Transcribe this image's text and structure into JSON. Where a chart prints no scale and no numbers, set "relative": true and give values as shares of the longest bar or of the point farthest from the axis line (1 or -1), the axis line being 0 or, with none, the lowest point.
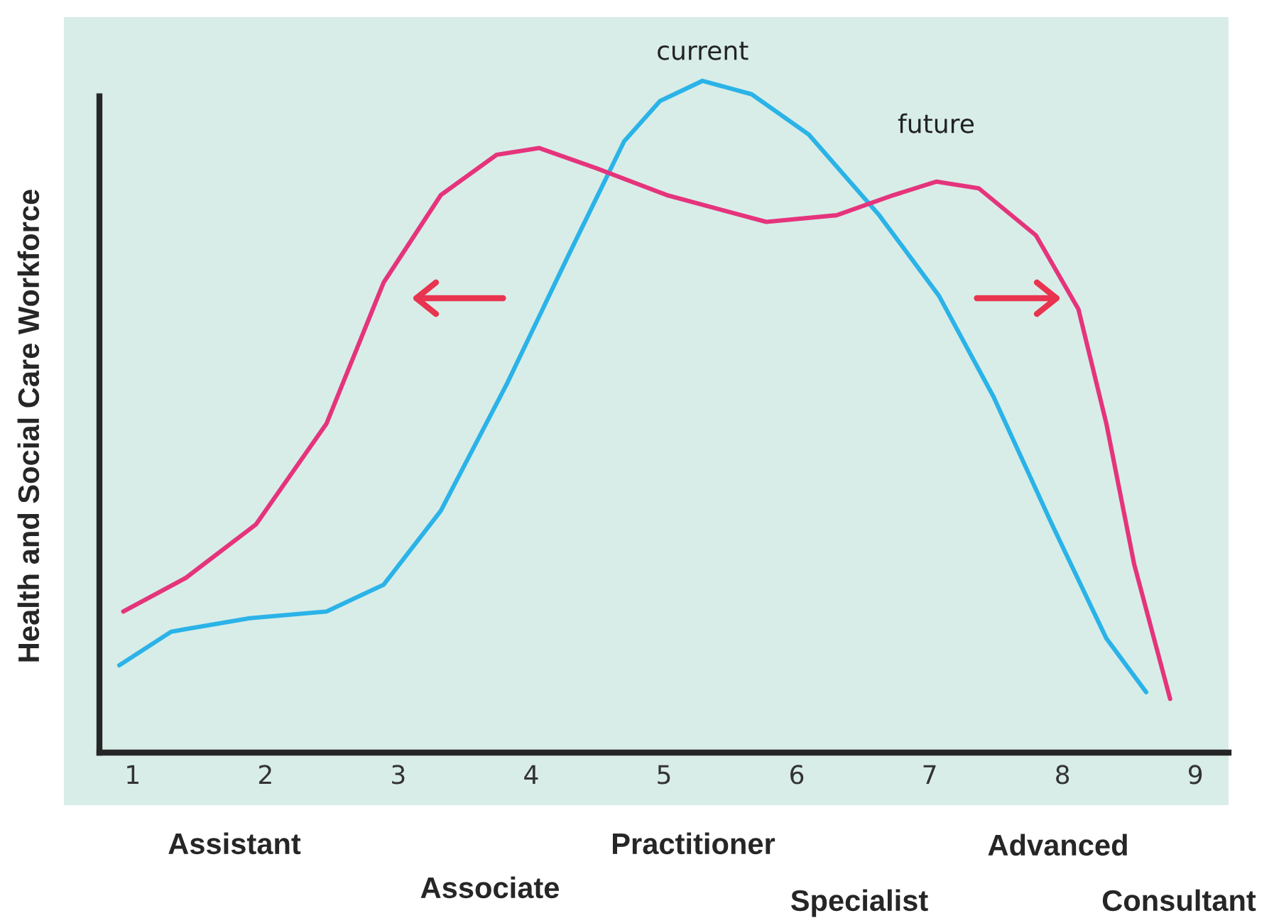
{
  "chart_data": {
    "type": "line",
    "relative": true,
    "ylabel": "Health and Social Care Workforce",
    "xlim": [
      0.75,
      9.25
    ],
    "xticks": [
      1,
      2,
      3,
      4,
      5,
      6,
      7,
      8,
      9
    ],
    "grid": false,
    "marker": "none",
    "line_style": "solid",
    "series": [
      {
        "name": "current",
        "color": "#2bb3e8",
        "x": [
          0.9,
          1.29,
          1.88,
          2.46,
          2.89,
          3.32,
          3.82,
          4.28,
          4.7,
          4.97,
          5.29,
          5.66,
          6.09,
          6.62,
          7.07,
          7.48,
          7.92,
          8.33,
          8.63
        ],
        "values": [
          0.13,
          0.18,
          0.2,
          0.21,
          0.25,
          0.36,
          0.55,
          0.74,
          0.91,
          0.97,
          1.0,
          0.98,
          0.92,
          0.8,
          0.68,
          0.53,
          0.34,
          0.17,
          0.09
        ]
      },
      {
        "name": "future",
        "color": "#e5347c",
        "x": [
          0.93,
          1.4,
          1.93,
          2.46,
          2.89,
          3.32,
          3.74,
          4.06,
          4.49,
          5.02,
          5.77,
          6.3,
          6.73,
          7.05,
          7.37,
          7.8,
          8.12,
          8.33,
          8.54,
          8.81
        ],
        "values": [
          0.21,
          0.26,
          0.34,
          0.49,
          0.7,
          0.83,
          0.89,
          0.9,
          0.87,
          0.83,
          0.79,
          0.8,
          0.83,
          0.85,
          0.84,
          0.77,
          0.66,
          0.49,
          0.28,
          0.08
        ]
      }
    ],
    "annotations": [
      "Assistant",
      "Associate",
      "Practitioner",
      "Specialist",
      "Advanced",
      "Consultant"
    ]
  }
}
